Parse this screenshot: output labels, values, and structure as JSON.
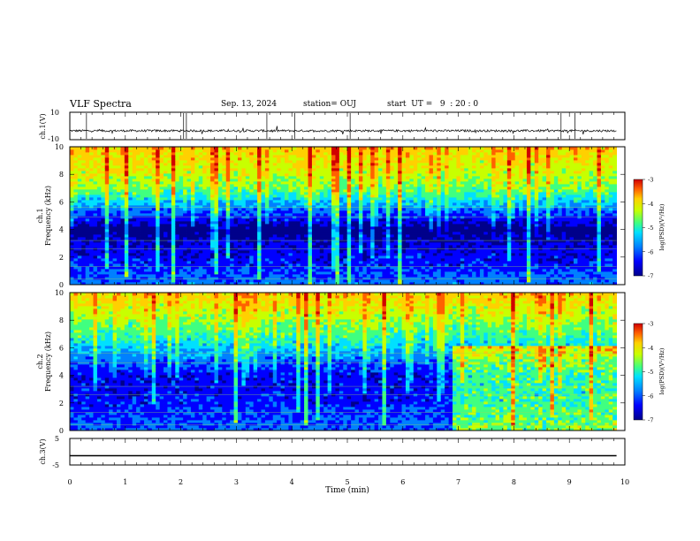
{
  "header": {
    "title": "VLF Spectra",
    "date": "Sep. 13, 2024",
    "station": "station= OUJ",
    "start": "start  UT =   9  : 20 : 0"
  },
  "colormap": [
    "#00008b",
    "#0000ff",
    "#0080ff",
    "#00e0ff",
    "#40ff80",
    "#c8ff00",
    "#ffd000",
    "#ff6000",
    "#d00000"
  ],
  "chart_data": [
    {
      "type": "line",
      "ylabel": "ch.1(V)",
      "ylim": [
        -10,
        10
      ],
      "yticks": [
        "10",
        "-10"
      ],
      "baseline": -3.5,
      "xlim": [
        0,
        10
      ]
    },
    {
      "type": "heatmap",
      "ylabel_main": "ch.1",
      "ylabel_sub": "Frequency (kHz)",
      "yticks": [
        "0",
        "2",
        "4",
        "6",
        "8",
        "10"
      ],
      "ylim": [
        0,
        10
      ],
      "xlim": [
        0,
        9.85
      ],
      "colorbar": {
        "label": "log(PSD)(V²/Hz)",
        "ticks": [
          "-3",
          "-4",
          "-5",
          "-6",
          "-7"
        ],
        "range": [
          -7,
          -3
        ]
      },
      "level_profile": [
        {
          "f": 0,
          "v": -5.9
        },
        {
          "f": 1.5,
          "v": -6.3
        },
        {
          "f": 3,
          "v": -6.5
        },
        {
          "f": 4,
          "v": -6.9
        },
        {
          "f": 5,
          "v": -6.2
        },
        {
          "f": 6,
          "v": -5.6
        },
        {
          "f": 7,
          "v": -5.0
        },
        {
          "f": 8.5,
          "v": -4.6
        },
        {
          "f": 10,
          "v": -4.3
        }
      ]
    },
    {
      "type": "heatmap",
      "ylabel_main": "ch.2",
      "ylabel_sub": "Frequency (kHz)",
      "yticks": [
        "0",
        "2",
        "4",
        "6",
        "8",
        "10"
      ],
      "ylim": [
        0,
        10
      ],
      "xlim": [
        0,
        9.85
      ],
      "colorbar": {
        "label": "log(PSD)(V²/Hz)",
        "ticks": [
          "-3",
          "-4",
          "-5",
          "-6",
          "-7"
        ],
        "range": [
          -7,
          -3
        ]
      },
      "level_profile": [
        {
          "f": 0,
          "v": -6.0
        },
        {
          "f": 2,
          "v": -6.3
        },
        {
          "f": 4,
          "v": -6.4
        },
        {
          "f": 6,
          "v": -5.6
        },
        {
          "f": 8,
          "v": -4.9
        },
        {
          "f": 10,
          "v": -4.3
        }
      ],
      "enhancement": {
        "t_start": 6.9,
        "t_end": 9.85,
        "f_low": 0,
        "f_high": 6.2,
        "delta": 1.3
      }
    },
    {
      "type": "line",
      "ylabel": "ch.3(V)",
      "ylim": [
        -5,
        5
      ],
      "yticks": [
        "5",
        "-5"
      ],
      "baseline": -1.5,
      "xlim": [
        0,
        9.85
      ]
    }
  ],
  "xaxis": {
    "label": "Time (min)",
    "ticks": [
      "0",
      "1",
      "2",
      "3",
      "4",
      "5",
      "6",
      "7",
      "8",
      "9",
      "10"
    ],
    "range": [
      0,
      10
    ]
  }
}
